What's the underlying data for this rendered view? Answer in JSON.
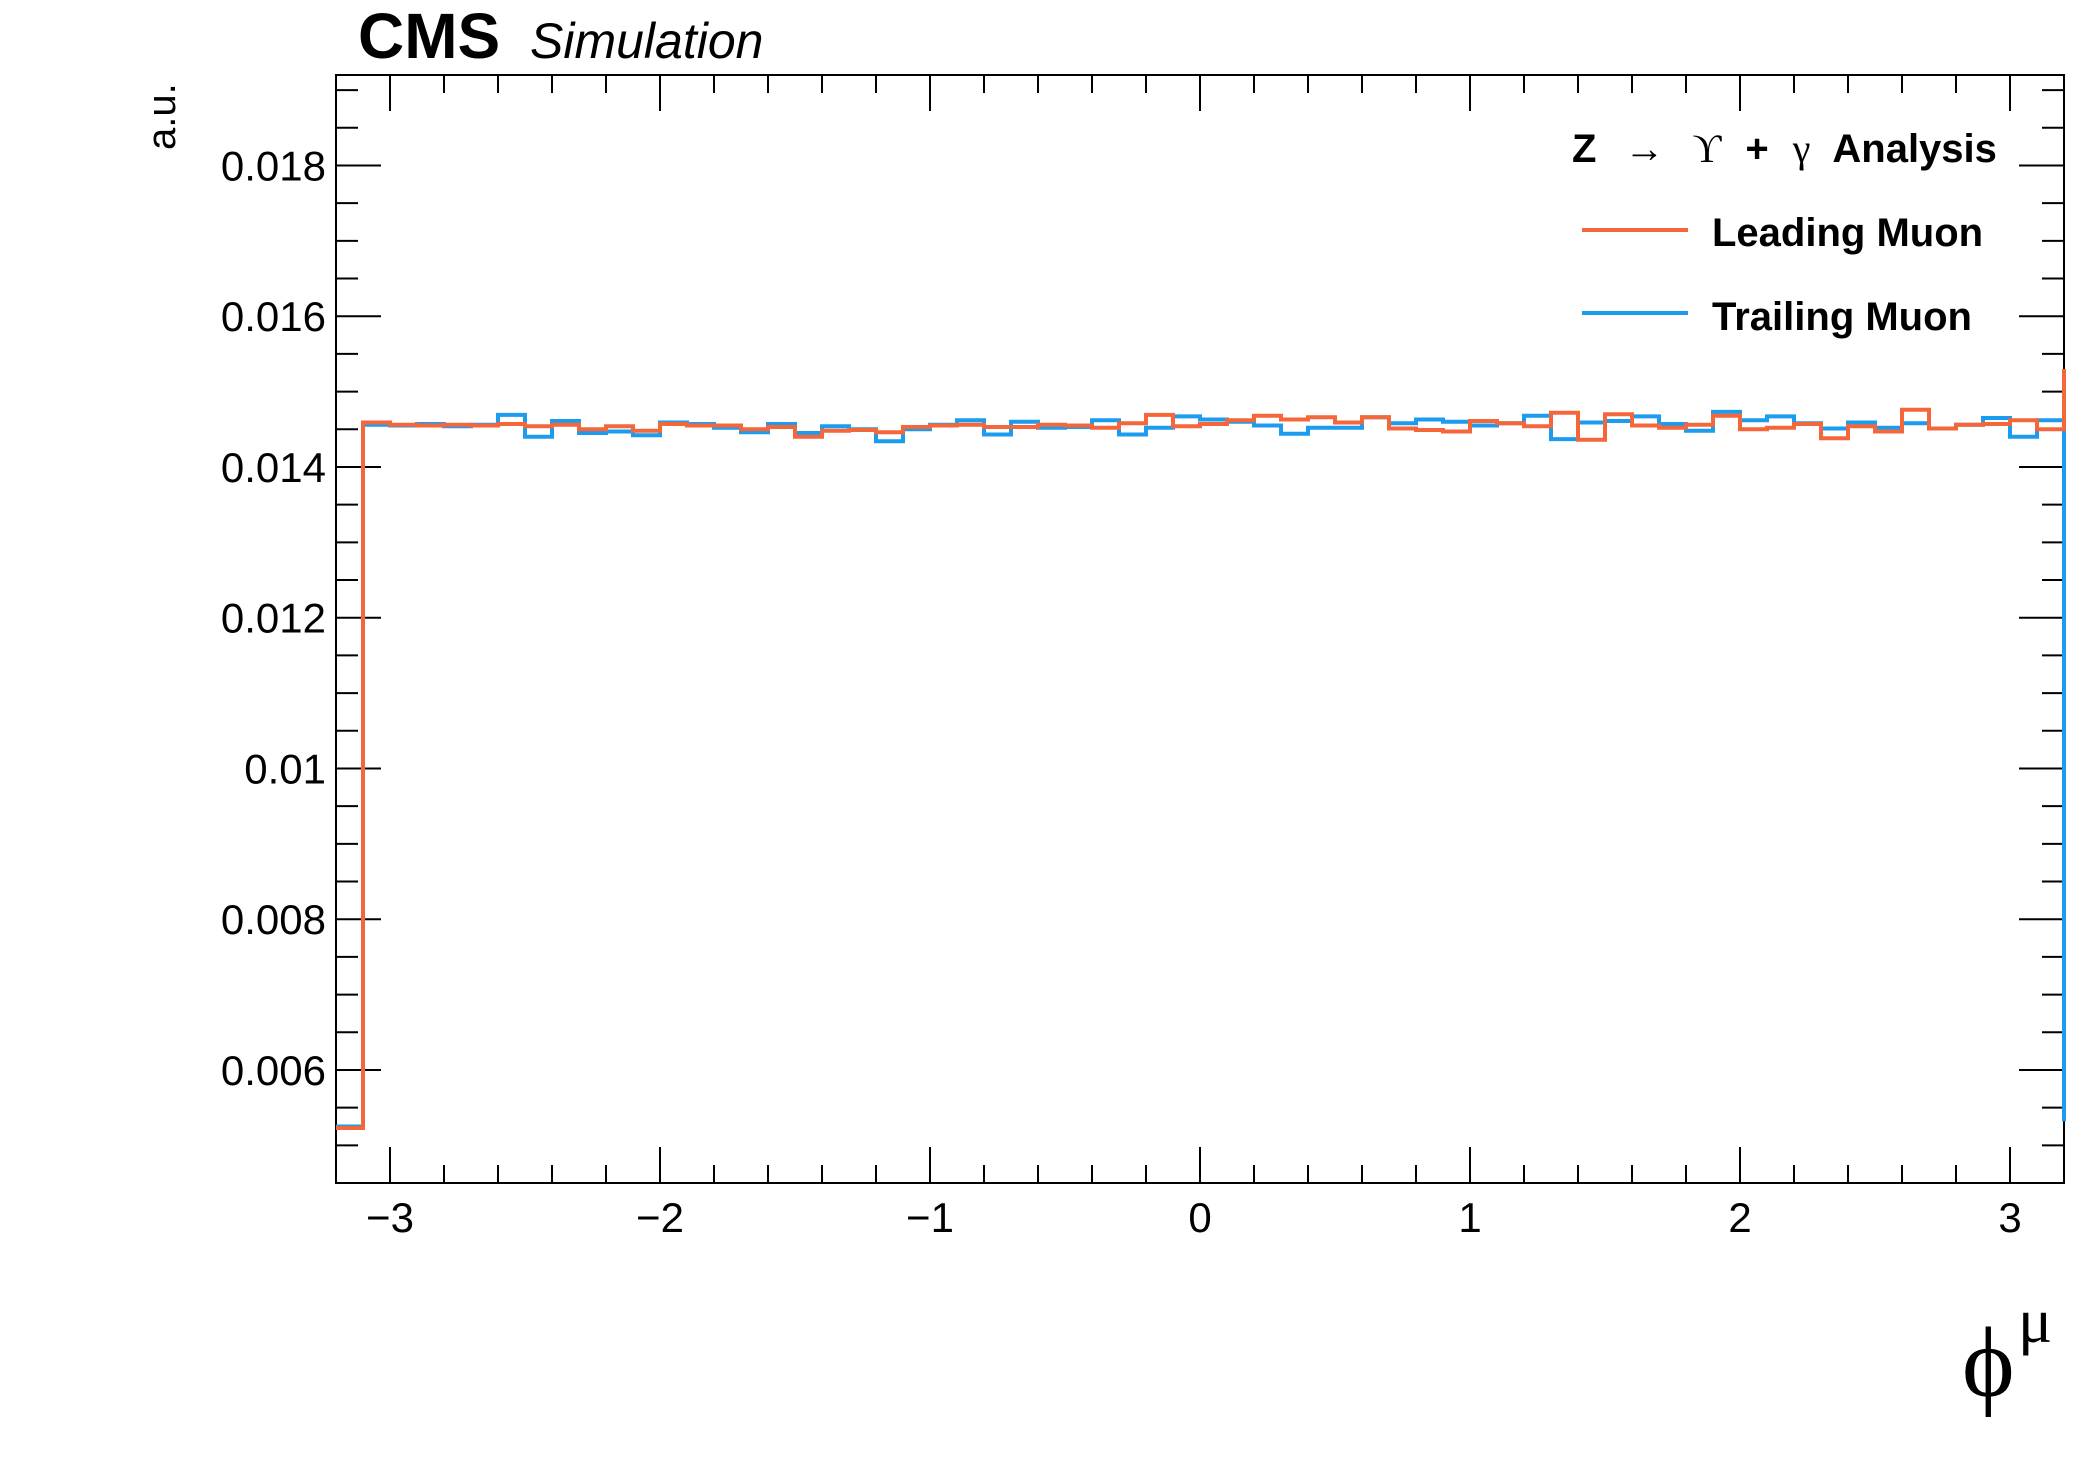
{
  "header": {
    "experiment": "CMS",
    "label": "Simulation"
  },
  "legend": {
    "title_parts": [
      "Z",
      "→",
      "ϒ",
      "+",
      "γ",
      "Analysis"
    ],
    "entries": [
      {
        "label": "Leading Muon",
        "color": "#f4673a"
      },
      {
        "label": "Trailing Muon",
        "color": "#1b9cef"
      }
    ]
  },
  "chart_data": {
    "type": "line",
    "style": "step-histogram",
    "ylabel": "a.u.",
    "xlabel_symbol": "ϕ",
    "xlabel_superscript": "μ",
    "xlim": [
      -3.2,
      3.2
    ],
    "ylim": [
      0.0045,
      0.0192
    ],
    "x_ticks": [
      -3,
      -2,
      -1,
      0,
      1,
      2,
      3
    ],
    "x_tick_labels": [
      "−3",
      "−2",
      "−1",
      "0",
      "1",
      "2",
      "3"
    ],
    "y_ticks": [
      0.006,
      0.008,
      0.01,
      0.012,
      0.014,
      0.016,
      0.018
    ],
    "y_tick_labels": [
      "0.006",
      "0.008",
      "0.01",
      "0.012",
      "0.014",
      "0.016",
      "0.018"
    ],
    "bin_edges": [
      -3.2,
      -3.1,
      -3.0,
      -2.9,
      -2.8,
      -2.7,
      -2.6,
      -2.5,
      -2.4,
      -2.3,
      -2.2,
      -2.1,
      -2.0,
      -1.9,
      -1.8,
      -1.7,
      -1.6,
      -1.5,
      -1.4,
      -1.3,
      -1.2,
      -1.1,
      -1.0,
      -0.9,
      -0.8,
      -0.7,
      -0.6,
      -0.5,
      -0.4,
      -0.3,
      -0.2,
      -0.1,
      0.0,
      0.1,
      0.2,
      0.3,
      0.4,
      0.5,
      0.6,
      0.7,
      0.8,
      0.9,
      1.0,
      1.1,
      1.2,
      1.3,
      1.4,
      1.5,
      1.6,
      1.7,
      1.8,
      1.9,
      2.0,
      2.1,
      2.2,
      2.3,
      2.4,
      2.5,
      2.6,
      2.7,
      2.8,
      2.9,
      3.0,
      3.1,
      3.2
    ],
    "series": [
      {
        "name": "Trailing Muon",
        "color": "#1b9cef",
        "values": [
          0.00525,
          0.01456,
          0.01455,
          0.01457,
          0.01454,
          0.01456,
          0.01469,
          0.0144,
          0.01461,
          0.01445,
          0.01447,
          0.01442,
          0.01459,
          0.01457,
          0.01452,
          0.01446,
          0.01457,
          0.01445,
          0.01454,
          0.0145,
          0.01434,
          0.0145,
          0.01456,
          0.01462,
          0.01443,
          0.0146,
          0.01452,
          0.01453,
          0.01462,
          0.01443,
          0.01452,
          0.01467,
          0.01463,
          0.0146,
          0.01455,
          0.01444,
          0.01452,
          0.01452,
          0.01466,
          0.01458,
          0.01463,
          0.0146,
          0.01455,
          0.01458,
          0.01468,
          0.01437,
          0.01459,
          0.01461,
          0.01467,
          0.01457,
          0.01448,
          0.01473,
          0.01462,
          0.01467,
          0.01458,
          0.01451,
          0.01459,
          0.01452,
          0.01458,
          0.01451,
          0.01456,
          0.01465,
          0.0144,
          0.01462,
          0.00532
        ]
      },
      {
        "name": "Leading Muon",
        "color": "#f4673a",
        "values": [
          0.00523,
          0.01459,
          0.01456,
          0.01455,
          0.01456,
          0.01455,
          0.01457,
          0.01454,
          0.01456,
          0.0145,
          0.01454,
          0.01448,
          0.01457,
          0.01455,
          0.01455,
          0.0145,
          0.01453,
          0.0144,
          0.01448,
          0.01449,
          0.01446,
          0.01453,
          0.01455,
          0.01456,
          0.01453,
          0.01453,
          0.01456,
          0.01455,
          0.01452,
          0.01458,
          0.01469,
          0.01454,
          0.01457,
          0.01462,
          0.01468,
          0.01463,
          0.01466,
          0.01459,
          0.01466,
          0.01451,
          0.01449,
          0.01447,
          0.01461,
          0.01458,
          0.01454,
          0.01472,
          0.01436,
          0.0147,
          0.01455,
          0.01452,
          0.01456,
          0.01468,
          0.0145,
          0.01452,
          0.01457,
          0.01438,
          0.01454,
          0.01447,
          0.01476,
          0.01451,
          0.01456,
          0.01457,
          0.01462,
          0.0145,
          0.0153
        ]
      }
    ]
  }
}
